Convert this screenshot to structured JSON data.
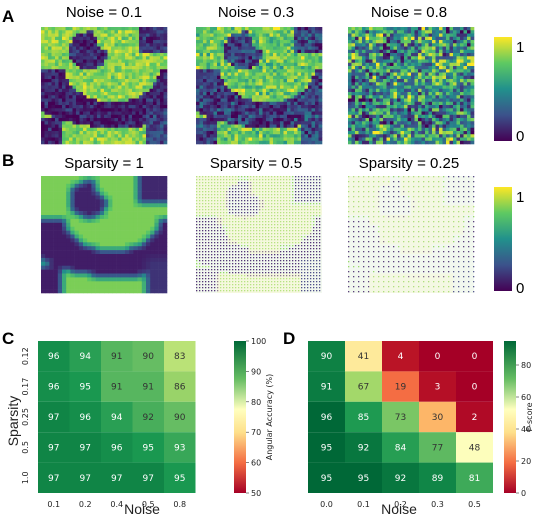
{
  "panels": {
    "A": "A",
    "B": "B",
    "C": "C",
    "D": "D"
  },
  "panel_a": {
    "titles": [
      "Noise = 0.1",
      "Noise = 0.3",
      "Noise = 0.8"
    ],
    "noise_levels": [
      0.1,
      0.3,
      0.8
    ],
    "colorbar_ticks": [
      "1",
      "0"
    ]
  },
  "panel_b": {
    "titles": [
      "Sparsity = 1",
      "Sparsity = 0.5",
      "Sparsity = 0.25"
    ],
    "sparsity_levels": [
      1,
      0.5,
      0.25
    ],
    "colorbar_ticks": [
      "1",
      "0"
    ]
  },
  "chart_data": [
    {
      "panel": "C",
      "type": "heatmap",
      "xlabel": "Noise",
      "ylabel": "Sparsity",
      "x_ticks": [
        "0.1",
        "0.2",
        "0.4",
        "0.5",
        "0.8"
      ],
      "y_ticks": [
        "0.12",
        "0.17",
        "0.25",
        "0.5",
        "1.0"
      ],
      "values": [
        [
          96,
          94,
          91,
          90,
          83
        ],
        [
          96,
          95,
          91,
          91,
          86
        ],
        [
          97,
          96,
          94,
          92,
          90
        ],
        [
          97,
          97,
          96,
          95,
          93
        ],
        [
          97,
          97,
          97,
          97,
          95
        ]
      ],
      "colorbar_label": "Angular Accuracy (%)",
      "colorbar_range": [
        50,
        100
      ],
      "colorbar_ticks": [
        "100",
        "90",
        "80",
        "70",
        "60",
        "50"
      ],
      "colormap": "RdYlGn"
    },
    {
      "panel": "D",
      "type": "heatmap",
      "xlabel": "Noise",
      "ylabel": "",
      "x_ticks": [
        "0.0",
        "0.1",
        "0.2",
        "0.3",
        "0.5"
      ],
      "values": [
        [
          90,
          41,
          4,
          0,
          0
        ],
        [
          91,
          67,
          19,
          3,
          0
        ],
        [
          96,
          85,
          73,
          30,
          2
        ],
        [
          95,
          92,
          84,
          77,
          48
        ],
        [
          95,
          95,
          92,
          89,
          81
        ]
      ],
      "colorbar_label": "F-score",
      "colorbar_range": [
        0,
        95
      ],
      "colorbar_ticks": [
        "80",
        "60",
        "40",
        "20",
        "0"
      ],
      "colormap": "RdYlGn"
    }
  ]
}
